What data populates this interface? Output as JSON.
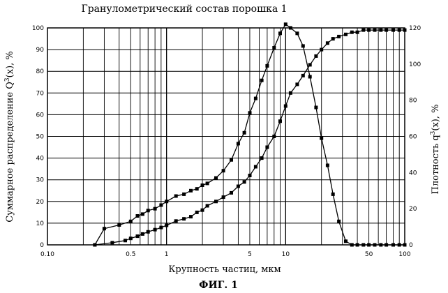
{
  "chart_data": {
    "type": "line",
    "title": "Гранулометрический состав порошка 1",
    "xlabel": "Крупность частиц, мкм",
    "ylabel_left": "Суммарное распределение Q",
    "ylabel_left_sup": "3",
    "ylabel_left_tail": "(x), %",
    "ylabel_right": "Плотность q",
    "ylabel_right_sup": "3",
    "ylabel_right_tail": "(x), %",
    "caption": "ФИГ. 1",
    "x_scale": "log",
    "xlim": [
      0.1,
      100
    ],
    "ylim_left": [
      0,
      100
    ],
    "ylim_right": [
      0,
      120
    ],
    "grid": true,
    "x_ticks": [
      {
        "value": 0.1,
        "label": "0.10"
      },
      {
        "value": 0.5,
        "label": "0.5"
      },
      {
        "value": 1,
        "label": "1"
      },
      {
        "value": 5,
        "label": "5"
      },
      {
        "value": 10,
        "label": "10"
      },
      {
        "value": 50,
        "label": "50"
      },
      {
        "value": 100,
        "label": "100"
      }
    ],
    "y_left_ticks": [
      "0",
      "10",
      "20",
      "30",
      "40",
      "50",
      "60",
      "70",
      "80",
      "90",
      "100"
    ],
    "y_right_ticks": [
      "0",
      "20",
      "40",
      "60",
      "80",
      "100",
      "120"
    ],
    "series": [
      {
        "axis": "left",
        "x": [
          0.25,
          0.35,
          0.45,
          0.5,
          0.57,
          0.63,
          0.7,
          0.8,
          0.9,
          1,
          1.2,
          1.4,
          1.6,
          1.8,
          2,
          2.2,
          2.6,
          3,
          3.5,
          4,
          4.5,
          5,
          5.6,
          6.3,
          7,
          8,
          9,
          10,
          11,
          12.5,
          14,
          16,
          18,
          20,
          22.5,
          25,
          28,
          32,
          36,
          40,
          45,
          50,
          56,
          63,
          70,
          80,
          90,
          100
        ],
        "y": [
          0,
          1,
          2,
          3,
          4,
          5,
          6,
          7,
          8,
          9,
          11,
          12,
          13,
          15,
          16,
          18,
          20,
          22,
          24,
          27,
          29,
          32,
          36,
          40,
          45,
          50,
          57,
          64,
          70,
          74,
          78,
          83,
          87,
          90,
          93,
          95,
          96,
          97,
          98,
          98,
          99,
          99,
          99,
          99,
          99,
          99,
          99,
          99
        ]
      },
      {
        "axis": "right",
        "x": [
          0.25,
          0.3,
          0.4,
          0.5,
          0.57,
          0.63,
          0.7,
          0.8,
          0.9,
          1,
          1.2,
          1.4,
          1.6,
          1.8,
          2,
          2.2,
          2.6,
          3,
          3.5,
          4,
          4.5,
          5,
          5.6,
          6.3,
          7,
          8,
          9,
          10,
          11,
          12.5,
          14,
          16,
          18,
          20,
          22.5,
          25,
          28,
          32,
          36,
          40,
          45,
          50,
          56,
          63,
          70,
          80,
          90,
          100
        ],
        "y": [
          0,
          9,
          11,
          13,
          16,
          17,
          19,
          20,
          22,
          24,
          27,
          28,
          30,
          31,
          33,
          34,
          37,
          41,
          47,
          56,
          62,
          73,
          81,
          91,
          99,
          109,
          117,
          122,
          120,
          117,
          110,
          93,
          76,
          59,
          44,
          28,
          13,
          2,
          0,
          0,
          0,
          0,
          0,
          0,
          0,
          0,
          0,
          0
        ]
      }
    ]
  }
}
